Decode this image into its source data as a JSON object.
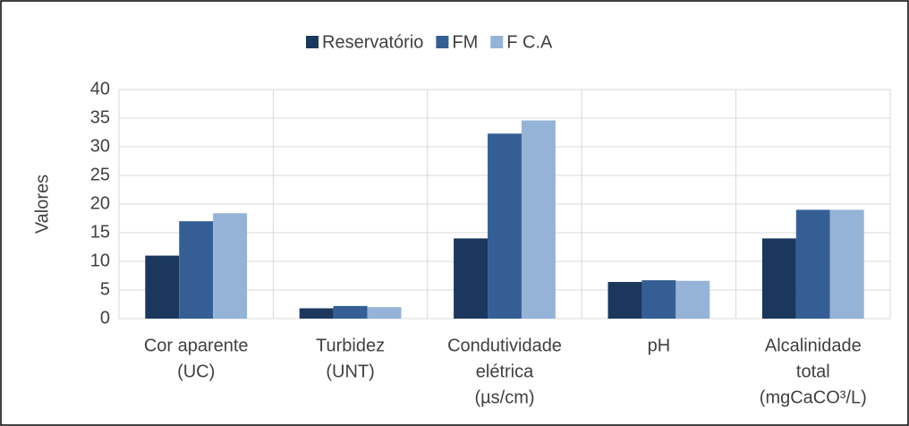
{
  "chart_data": {
    "type": "bar",
    "categories": [
      [
        "Cor aparente",
        "(UC)"
      ],
      [
        "Turbidez",
        "(UNT)"
      ],
      [
        "Condutividade",
        "elétrica",
        "(µs/cm)"
      ],
      [
        "pH"
      ],
      [
        "Alcalinidade",
        "total",
        "(mgCaCO³/L)"
      ]
    ],
    "series": [
      {
        "name": "Reservatório",
        "color": "#1b375e",
        "values": [
          11,
          1.8,
          14,
          6.4,
          14
        ]
      },
      {
        "name": "FM",
        "color": "#355f94",
        "values": [
          17,
          2.2,
          32.3,
          6.7,
          19
        ]
      },
      {
        "name": "F C.A",
        "color": "#95b3d7",
        "values": [
          18.4,
          2.0,
          34.6,
          6.6,
          19
        ]
      }
    ],
    "y_label": "Valores",
    "ylim": [
      0,
      40
    ],
    "yticks": [
      0,
      5,
      10,
      15,
      20,
      25,
      30,
      35,
      40
    ],
    "grid": true,
    "legend": "top"
  }
}
